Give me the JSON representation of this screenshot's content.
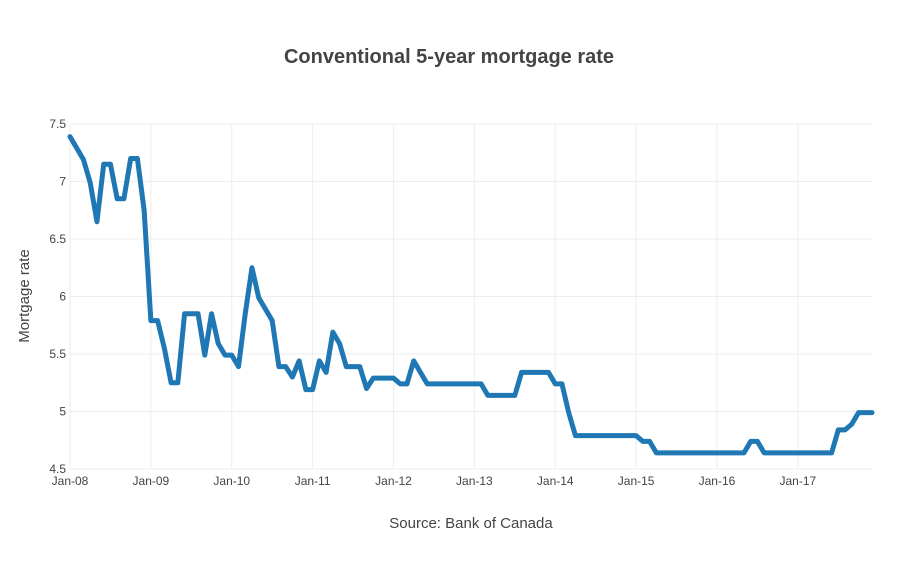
{
  "chart_data": {
    "type": "line",
    "title": "Conventional 5-year mortgage rate",
    "xlabel": "Source: Bank of Canada",
    "ylabel": "Mortgage rate",
    "x_ticks": [
      "Jan-08",
      "Jan-09",
      "Jan-10",
      "Jan-11",
      "Jan-12",
      "Jan-13",
      "Jan-14",
      "Jan-15",
      "Jan-16",
      "Jan-17"
    ],
    "y_ticks": [
      "4.5",
      "5",
      "5.5",
      "6",
      "6.5",
      "7",
      "7.5"
    ],
    "ylim": [
      4.5,
      7.5
    ],
    "xlim": [
      "2008-01",
      "2017-12"
    ],
    "grid": true,
    "colors": {
      "series": "#1f77b4",
      "grid": "#eeeeee",
      "text": "#444444"
    },
    "series": [
      {
        "x": [
          "2008-01",
          "2008-02",
          "2008-03",
          "2008-04",
          "2008-05",
          "2008-06",
          "2008-07",
          "2008-08",
          "2008-09",
          "2008-10",
          "2008-11",
          "2008-12",
          "2009-01",
          "2009-02",
          "2009-03",
          "2009-04",
          "2009-05",
          "2009-06",
          "2009-07",
          "2009-08",
          "2009-09",
          "2009-10",
          "2009-11",
          "2009-12",
          "2010-01",
          "2010-02",
          "2010-03",
          "2010-04",
          "2010-05",
          "2010-06",
          "2010-07",
          "2010-08",
          "2010-09",
          "2010-10",
          "2010-11",
          "2010-12",
          "2011-01",
          "2011-02",
          "2011-03",
          "2011-04",
          "2011-05",
          "2011-06",
          "2011-07",
          "2011-08",
          "2011-09",
          "2011-10",
          "2011-11",
          "2011-12",
          "2012-01",
          "2012-02",
          "2012-03",
          "2012-04",
          "2012-05",
          "2012-06",
          "2012-07",
          "2012-08",
          "2012-09",
          "2012-10",
          "2012-11",
          "2012-12",
          "2013-01",
          "2013-02",
          "2013-03",
          "2013-04",
          "2013-05",
          "2013-06",
          "2013-07",
          "2013-08",
          "2013-09",
          "2013-10",
          "2013-11",
          "2013-12",
          "2014-01",
          "2014-02",
          "2014-03",
          "2014-04",
          "2014-05",
          "2014-06",
          "2014-07",
          "2014-08",
          "2014-09",
          "2014-10",
          "2014-11",
          "2014-12",
          "2015-01",
          "2015-02",
          "2015-03",
          "2015-04",
          "2015-05",
          "2015-06",
          "2015-07",
          "2015-08",
          "2015-09",
          "2015-10",
          "2015-11",
          "2015-12",
          "2016-01",
          "2016-02",
          "2016-03",
          "2016-04",
          "2016-05",
          "2016-06",
          "2016-07",
          "2016-08",
          "2016-09",
          "2016-10",
          "2016-11",
          "2016-12",
          "2017-01",
          "2017-02",
          "2017-03",
          "2017-04",
          "2017-05",
          "2017-06",
          "2017-07",
          "2017-08",
          "2017-09",
          "2017-10",
          "2017-11",
          "2017-12"
        ],
        "values": [
          7.39,
          7.29,
          7.19,
          6.99,
          6.65,
          7.15,
          7.15,
          6.85,
          6.85,
          7.2,
          7.2,
          6.75,
          5.79,
          5.79,
          5.55,
          5.25,
          5.25,
          5.85,
          5.85,
          5.85,
          5.49,
          5.85,
          5.59,
          5.49,
          5.49,
          5.39,
          5.85,
          6.25,
          5.99,
          5.89,
          5.79,
          5.39,
          5.39,
          5.3,
          5.44,
          5.19,
          5.19,
          5.44,
          5.34,
          5.69,
          5.59,
          5.39,
          5.39,
          5.39,
          5.2,
          5.29,
          5.29,
          5.29,
          5.29,
          5.24,
          5.24,
          5.44,
          5.34,
          5.24,
          5.24,
          5.24,
          5.24,
          5.24,
          5.24,
          5.24,
          5.24,
          5.24,
          5.14,
          5.14,
          5.14,
          5.14,
          5.14,
          5.34,
          5.34,
          5.34,
          5.34,
          5.34,
          5.24,
          5.24,
          4.99,
          4.79,
          4.79,
          4.79,
          4.79,
          4.79,
          4.79,
          4.79,
          4.79,
          4.79,
          4.79,
          4.74,
          4.74,
          4.64,
          4.64,
          4.64,
          4.64,
          4.64,
          4.64,
          4.64,
          4.64,
          4.64,
          4.64,
          4.64,
          4.64,
          4.64,
          4.64,
          4.74,
          4.74,
          4.64,
          4.64,
          4.64,
          4.64,
          4.64,
          4.64,
          4.64,
          4.64,
          4.64,
          4.64,
          4.64,
          4.84,
          4.84,
          4.89,
          4.99,
          4.99,
          4.99
        ]
      }
    ]
  }
}
